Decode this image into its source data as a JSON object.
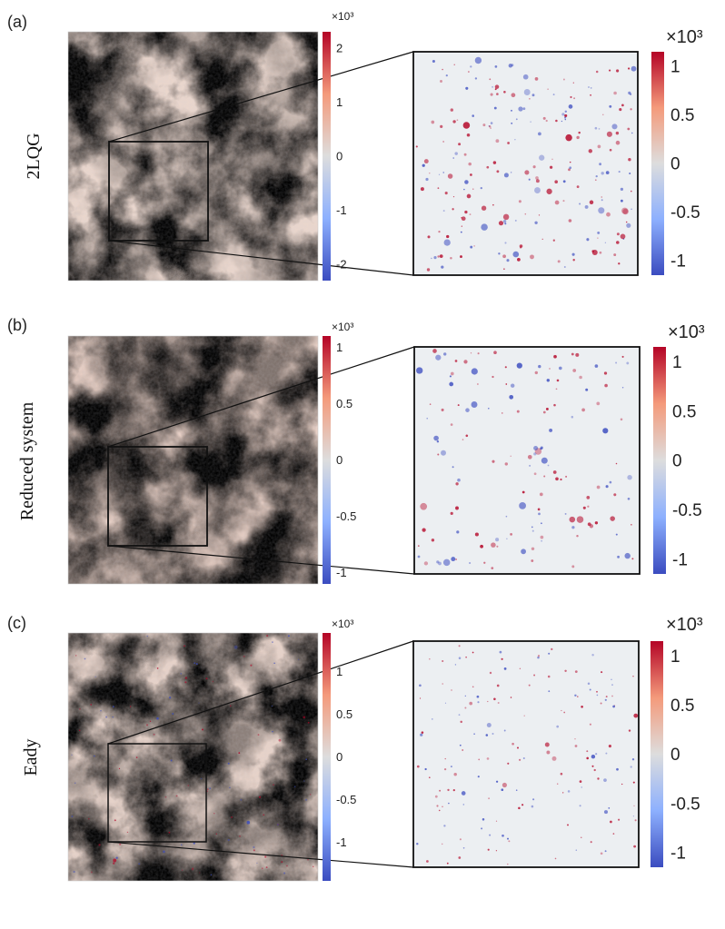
{
  "figure": {
    "panels": [
      {
        "id": "a",
        "panel_label": "(a)",
        "row_label": "2LQG",
        "main_colorbar": {
          "exponent_label": "×10³",
          "ticks": [
            "2",
            "1",
            "0",
            "-1",
            "-2"
          ],
          "tick_values": [
            2,
            1,
            0,
            -1,
            -2
          ],
          "range": [
            -2.3,
            2.3
          ]
        },
        "zoom_colorbar": {
          "exponent_label": "×10³",
          "ticks": [
            "1",
            "0.5",
            "0",
            "-0.5",
            "-1"
          ],
          "tick_values": [
            1,
            0.5,
            0,
            -0.5,
            -1
          ],
          "range": [
            -1.15,
            1.15
          ]
        }
      },
      {
        "id": "b",
        "panel_label": "(b)",
        "row_label": "Reduced system",
        "main_colorbar": {
          "exponent_label": "×10³",
          "ticks": [
            "1",
            "0.5",
            "0",
            "-0.5",
            "-1"
          ],
          "tick_values": [
            1,
            0.5,
            0,
            -0.5,
            -1
          ],
          "range": [
            -1.1,
            1.1
          ]
        },
        "zoom_colorbar": {
          "exponent_label": "×10³",
          "ticks": [
            "1",
            "0.5",
            "0",
            "-0.5",
            "-1"
          ],
          "tick_values": [
            1,
            0.5,
            0,
            -0.5,
            -1
          ],
          "range": [
            -1.15,
            1.15
          ]
        }
      },
      {
        "id": "c",
        "panel_label": "(c)",
        "row_label": "Eady",
        "main_colorbar": {
          "exponent_label": "×10³",
          "ticks": [
            "1",
            "0.5",
            "0",
            "-0.5",
            "-1"
          ],
          "tick_values": [
            1,
            0.5,
            0,
            -0.5,
            -1
          ],
          "range": [
            -1.45,
            1.45
          ]
        },
        "zoom_colorbar": {
          "exponent_label": "×10³",
          "ticks": [
            "1",
            "0.5",
            "0",
            "-0.5",
            "-1"
          ],
          "tick_values": [
            1,
            0.5,
            0,
            -0.5,
            -1
          ],
          "range": [
            -1.15,
            1.15
          ]
        }
      }
    ],
    "colors": {
      "negative": "#3b4cc0",
      "neutral": "#dddddd",
      "positive": "#b40426",
      "frame": "#111111"
    }
  }
}
